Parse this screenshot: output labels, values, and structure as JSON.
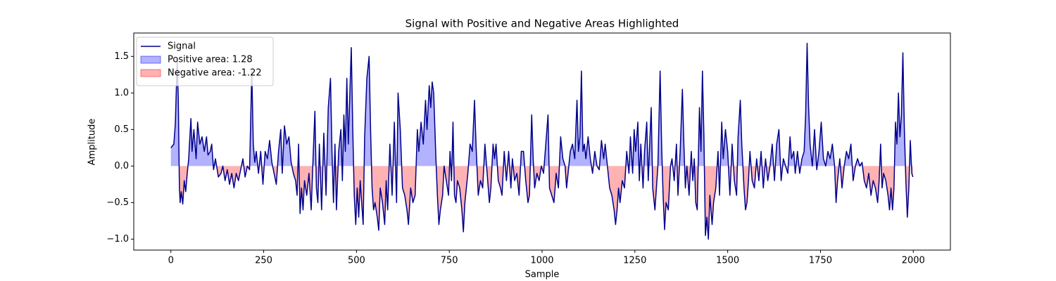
{
  "chart_data": {
    "type": "line",
    "title": "Signal with Positive and Negative Areas Highlighted",
    "x_label": "Sample",
    "y_label": "Amplitude",
    "x": [
      0,
      8,
      12,
      17,
      20,
      23,
      25,
      28,
      32,
      36,
      40,
      44,
      48,
      50,
      54,
      57,
      62,
      68,
      72,
      78,
      84,
      90,
      96,
      100,
      106,
      110,
      115,
      120,
      128,
      135,
      140,
      146,
      152,
      158,
      164,
      170,
      176,
      182,
      188,
      194,
      200,
      206,
      212,
      218,
      222,
      226,
      230,
      236,
      242,
      248,
      254,
      260,
      266,
      272,
      278,
      284,
      290,
      296,
      300,
      306,
      312,
      318,
      324,
      330,
      336,
      340,
      344,
      348,
      352,
      356,
      360,
      366,
      372,
      378,
      383,
      388,
      392,
      396,
      400,
      406,
      412,
      418,
      424,
      430,
      434,
      438,
      442,
      446,
      452,
      458,
      462,
      466,
      470,
      474,
      478,
      486,
      490,
      494,
      498,
      502,
      506,
      510,
      514,
      518,
      522,
      528,
      534,
      538,
      542,
      546,
      550,
      556,
      560,
      564,
      570,
      576,
      580,
      584,
      590,
      596,
      602,
      608,
      612,
      618,
      624,
      630,
      636,
      640,
      646,
      652,
      658,
      664,
      668,
      674,
      680,
      686,
      690,
      696,
      700,
      704,
      708,
      714,
      718,
      722,
      726,
      732,
      736,
      742,
      748,
      752,
      756,
      760,
      764,
      768,
      772,
      778,
      784,
      788,
      792,
      796,
      800,
      806,
      812,
      818,
      822,
      828,
      834,
      840,
      846,
      852,
      858,
      862,
      868,
      872,
      876,
      882,
      888,
      892,
      898,
      904,
      910,
      916,
      920,
      926,
      932,
      938,
      944,
      950,
      956,
      962,
      966,
      972,
      976,
      980,
      986,
      992,
      998,
      1004,
      1010,
      1016,
      1020,
      1026,
      1032,
      1038,
      1044,
      1050,
      1056,
      1062,
      1066,
      1070,
      1076,
      1082,
      1088,
      1094,
      1098,
      1102,
      1106,
      1110,
      1114,
      1118,
      1124,
      1130,
      1136,
      1142,
      1148,
      1154,
      1160,
      1166,
      1170,
      1176,
      1182,
      1188,
      1194,
      1198,
      1202,
      1206,
      1210,
      1216,
      1222,
      1228,
      1234,
      1238,
      1244,
      1248,
      1252,
      1258,
      1262,
      1266,
      1272,
      1276,
      1282,
      1286,
      1290,
      1294,
      1298,
      1304,
      1308,
      1312,
      1318,
      1322,
      1326,
      1330,
      1334,
      1340,
      1346,
      1350,
      1356,
      1362,
      1366,
      1372,
      1378,
      1382,
      1386,
      1390,
      1396,
      1402,
      1406,
      1410,
      1414,
      1418,
      1424,
      1428,
      1432,
      1436,
      1440,
      1444,
      1448,
      1452,
      1458,
      1462,
      1468,
      1474,
      1478,
      1484,
      1488,
      1494,
      1500,
      1506,
      1512,
      1518,
      1524,
      1528,
      1534,
      1538,
      1544,
      1548,
      1552,
      1556,
      1560,
      1566,
      1572,
      1578,
      1584,
      1590,
      1596,
      1602,
      1608,
      1614,
      1620,
      1626,
      1632,
      1638,
      1644,
      1650,
      1656,
      1662,
      1668,
      1672,
      1678,
      1682,
      1688,
      1694,
      1700,
      1706,
      1710,
      1714,
      1718,
      1722,
      1728,
      1734,
      1740,
      1746,
      1752,
      1758,
      1764,
      1770,
      1776,
      1782,
      1788,
      1792,
      1796,
      1802,
      1808,
      1814,
      1820,
      1826,
      1832,
      1838,
      1844,
      1850,
      1856,
      1862,
      1868,
      1874,
      1880,
      1886,
      1892,
      1898,
      1904,
      1908,
      1912,
      1916,
      1920,
      1926,
      1932,
      1936,
      1940,
      1944,
      1948,
      1952,
      1956,
      1960,
      1964,
      1968,
      1972,
      1976,
      1980,
      1984,
      1988,
      1992,
      1996,
      1999
    ],
    "series": [
      {
        "name": "Signal",
        "color": "#00008b",
        "values": [
          0.25,
          0.3,
          0.58,
          1.45,
          0.9,
          -0.3,
          -0.5,
          -0.35,
          -0.52,
          -0.2,
          -0.35,
          -0.1,
          0.1,
          0.3,
          0.65,
          0.2,
          0.5,
          0.1,
          0.6,
          0.3,
          0.4,
          0.2,
          0.4,
          0.15,
          0.2,
          0.3,
          -0.05,
          0.1,
          -0.15,
          -0.1,
          0,
          -0.2,
          -0.05,
          -0.25,
          -0.1,
          -0.3,
          -0.1,
          -0.2,
          -0.05,
          0.1,
          -0.15,
          0,
          -0.05,
          1.3,
          0.3,
          0.05,
          0.2,
          -0.1,
          0.2,
          -0.25,
          0.2,
          0.1,
          0.35,
          0.05,
          -0.1,
          -0.25,
          0.2,
          0.5,
          -0.1,
          0.55,
          0.3,
          0.4,
          0.05,
          -0.1,
          -0.2,
          -0.4,
          0.3,
          -0.65,
          -0.3,
          -0.6,
          -0.2,
          -0.4,
          -0.1,
          -0.6,
          0.1,
          0.75,
          -0.3,
          -0.5,
          0.3,
          -0.6,
          0.45,
          -0.4,
          0.8,
          1.2,
          0.2,
          -0.5,
          0.3,
          -0.6,
          0.2,
          0.5,
          -0.2,
          0.7,
          0.2,
          1.2,
          0.3,
          1.62,
          0.5,
          -0.4,
          -0.8,
          -0.3,
          -0.7,
          -0.2,
          -0.5,
          -0.8,
          0.4,
          1.2,
          1.5,
          0.5,
          -0.3,
          -0.6,
          -0.5,
          -0.7,
          -0.88,
          -0.3,
          -0.5,
          -0.8,
          -0.2,
          -0.6,
          0.3,
          -0.4,
          0.6,
          -0.5,
          1.0,
          0.5,
          -0.3,
          -0.4,
          -0.6,
          -0.8,
          -0.3,
          -0.5,
          -0.4,
          0.5,
          0.2,
          0.6,
          0.3,
          0.9,
          0.5,
          1.1,
          0.8,
          1.15,
          1.0,
          0.1,
          -0.4,
          -0.8,
          -0.6,
          -0.4,
          0,
          -0.2,
          -0.4,
          0.2,
          -0.2,
          0.6,
          -0.4,
          -0.5,
          -0.2,
          -0.3,
          -0.6,
          -0.9,
          -0.5,
          -0.3,
          -0.1,
          0.3,
          0.2,
          0.9,
          0.3,
          -0.4,
          -0.2,
          -0.3,
          0.3,
          -0.1,
          -0.5,
          -0.3,
          0.3,
          0.1,
          0.3,
          -0.2,
          -0.3,
          -0.4,
          0.2,
          -0.2,
          0.2,
          -0.3,
          0.1,
          -0.2,
          -0.1,
          -0.4,
          0.2,
          0.2,
          -0.2,
          -0.5,
          -0.4,
          0.7,
          0.1,
          -0.3,
          -0.1,
          -0.2,
          0,
          -0.1,
          0.3,
          0.7,
          -0.3,
          -0.4,
          -0.5,
          -0.1,
          -0.3,
          0.4,
          0.1,
          0,
          -0.3,
          -0.1,
          0.2,
          0.3,
          0.1,
          0.9,
          0.2,
          0.4,
          1.3,
          0.2,
          0.3,
          0.1,
          0.4,
          0.1,
          -0.1,
          0.2,
          0,
          -0.05,
          0.35,
          0.1,
          0.3,
          0,
          -0.3,
          -0.4,
          -0.6,
          -0.8,
          -0.6,
          -0.3,
          -0.5,
          -0.2,
          -0.3,
          0.2,
          -0.1,
          0.4,
          -0.1,
          0.5,
          0.2,
          0.6,
          -0.2,
          0.3,
          -0.3,
          0.2,
          0.6,
          -0.2,
          0.3,
          0.8,
          -0.3,
          -0.6,
          -0.3,
          0,
          1.3,
          0.3,
          -0.4,
          -0.87,
          -0.5,
          -0.6,
          0,
          0.1,
          -0.2,
          0.3,
          -0.4,
          0.2,
          1.05,
          0.3,
          -0.3,
          0,
          -0.4,
          0.2,
          -0.2,
          0.1,
          -0.5,
          -0.6,
          0.8,
          0.2,
          1.3,
          0.4,
          -0.95,
          -0.7,
          -1.0,
          -0.4,
          -0.8,
          -0.5,
          -0.3,
          0.2,
          -0.4,
          0.6,
          0.1,
          0.5,
          0.2,
          -0.4,
          0.3,
          -0.2,
          -0.4,
          0.4,
          0.9,
          0.3,
          -0.3,
          -0.6,
          -0.5,
          -0.2,
          0.2,
          -0.2,
          -0.3,
          0.1,
          -0.2,
          0.2,
          -0.3,
          0.1,
          -0.2,
          0,
          0.3,
          -0.2,
          0.3,
          0.5,
          -0.2,
          0.1,
          0,
          -0.1,
          0.4,
          0.1,
          0.2,
          -0.1,
          0.2,
          -0.1,
          0.1,
          0.2,
          0.7,
          1.68,
          0.8,
          0.3,
          0,
          0.5,
          -0.05,
          0.2,
          0.6,
          0.1,
          0,
          0.2,
          0.1,
          0.3,
          0,
          -0.5,
          -0.2,
          0.1,
          -0.3,
          0,
          0.2,
          0.1,
          0.3,
          -0.2,
          0,
          0.1,
          0,
          0.05,
          -0.2,
          -0.3,
          -0.1,
          -0.4,
          -0.2,
          -0.3,
          -0.5,
          -0.2,
          0.3,
          -0.3,
          -0.1,
          -0.2,
          -0.4,
          -0.6,
          -0.3,
          -0.6,
          -0.3,
          0.6,
          0.3,
          1.0,
          0.4,
          0.7,
          1.55,
          0.5,
          -0.2,
          -0.7,
          -0.3,
          0.35,
          -0.1,
          -0.15
        ]
      }
    ],
    "fills": [
      {
        "name": "Positive area: 1.28",
        "color": "#0000ff",
        "opacity": 0.3,
        "side": "positive"
      },
      {
        "name": "Negative area: -1.22",
        "color": "#ff0000",
        "opacity": 0.3,
        "side": "negative"
      }
    ],
    "xlim": [
      -100,
      2100
    ],
    "xticks": [
      0,
      250,
      500,
      750,
      1000,
      1250,
      1500,
      1750,
      2000
    ],
    "ylim": [
      -1.15,
      1.82
    ],
    "yticks": [
      {
        "value": -1.0,
        "label": "−1.0"
      },
      {
        "value": -0.5,
        "label": "−0.5"
      },
      {
        "value": 0.0,
        "label": "0.0"
      },
      {
        "value": 0.5,
        "label": "0.5"
      },
      {
        "value": 1.0,
        "label": "1.0"
      },
      {
        "value": 1.5,
        "label": "1.5"
      }
    ],
    "grid": false,
    "legend": "upper left"
  }
}
